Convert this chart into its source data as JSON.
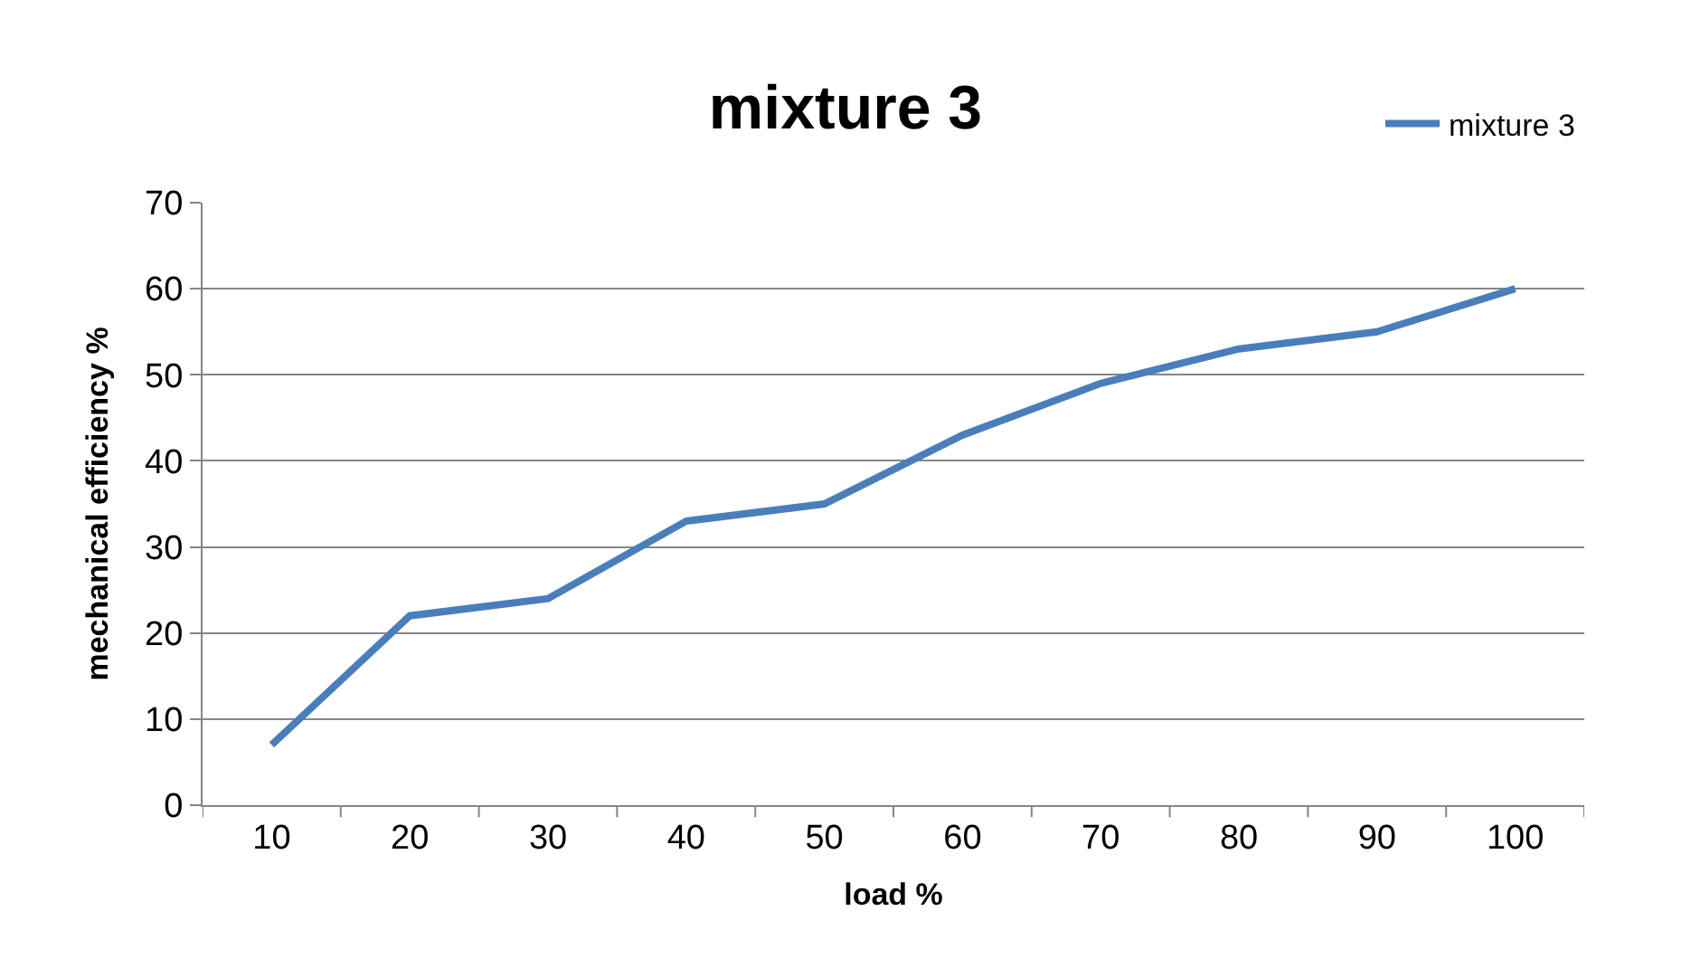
{
  "chart_data": {
    "type": "line",
    "title": "mixture 3",
    "xlabel": "load %",
    "ylabel": "mechanical efficiency %",
    "categories": [
      "10",
      "20",
      "30",
      "40",
      "50",
      "60",
      "70",
      "80",
      "90",
      "100"
    ],
    "series": [
      {
        "name": "mixture 3",
        "color": "#4a7ebb",
        "values": [
          7,
          22,
          24,
          33,
          35,
          43,
          49,
          53,
          55,
          60
        ]
      }
    ],
    "ylim": [
      0,
      70
    ],
    "yticks": [
      0,
      10,
      20,
      30,
      40,
      50,
      60,
      70
    ],
    "grid": "y",
    "legend": "top right",
    "marker": "none",
    "line_style": "solid"
  }
}
